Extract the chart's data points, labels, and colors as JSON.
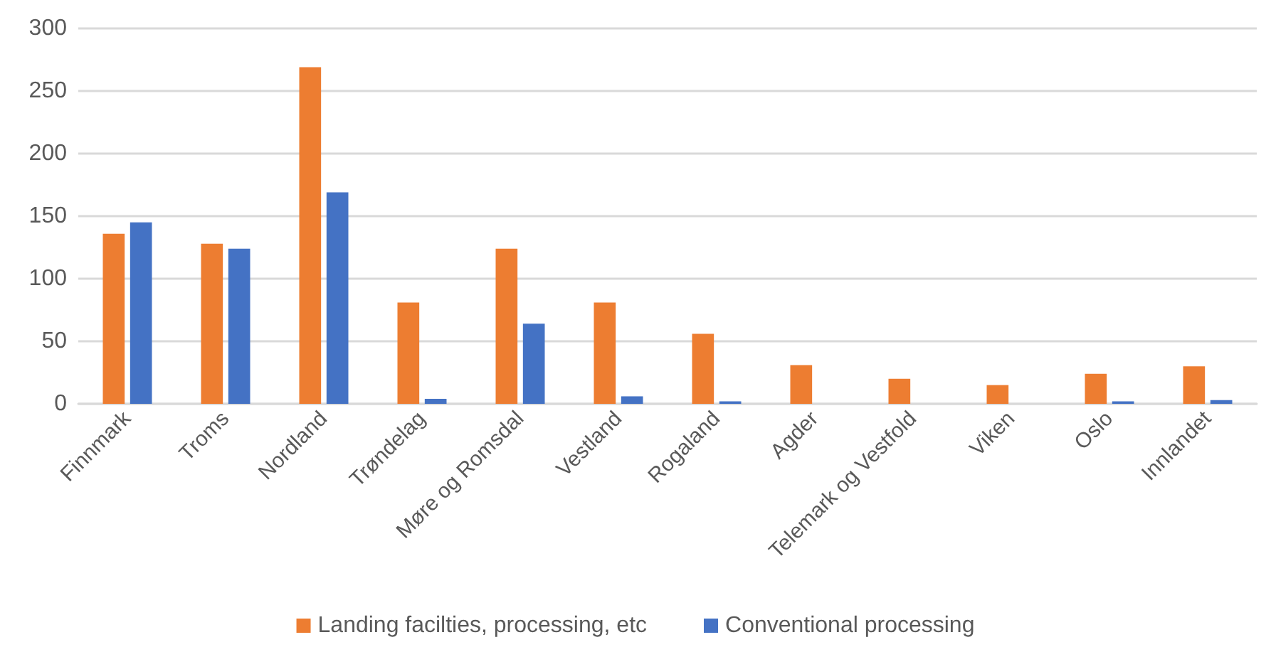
{
  "chart_data": {
    "type": "bar",
    "categories": [
      "Finnmark",
      "Troms",
      "Nordland",
      "Trøndelag",
      "Møre og Romsdal",
      "Vestland",
      "Rogaland",
      "Agder",
      "Telemark og Vestfold",
      "Viken",
      "Oslo",
      "Innlandet"
    ],
    "series": [
      {
        "name": "Landing facilties, processing, etc",
        "color": "#ed7d31",
        "values": [
          136,
          128,
          269,
          81,
          124,
          81,
          56,
          31,
          20,
          15,
          24,
          30
        ]
      },
      {
        "name": "Conventional processing",
        "color": "#4472c4",
        "values": [
          145,
          124,
          169,
          4,
          64,
          6,
          2,
          0,
          0,
          0,
          2,
          3
        ]
      }
    ],
    "ylim": [
      0,
      300
    ],
    "yticks": [
      0,
      50,
      100,
      150,
      200,
      250,
      300
    ],
    "grid": "y",
    "legend": "bottom"
  }
}
